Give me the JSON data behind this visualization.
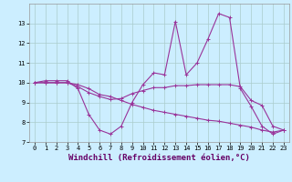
{
  "x": [
    0,
    1,
    2,
    3,
    4,
    5,
    6,
    7,
    8,
    9,
    10,
    11,
    12,
    13,
    14,
    15,
    16,
    17,
    18,
    19,
    20,
    21,
    22,
    23
  ],
  "line1": [
    10.0,
    10.1,
    10.1,
    10.1,
    9.7,
    8.4,
    7.6,
    7.4,
    7.8,
    9.0,
    9.9,
    10.5,
    10.4,
    13.1,
    10.4,
    11.0,
    12.2,
    13.5,
    13.3,
    9.7,
    8.8,
    7.8,
    7.4,
    7.6
  ],
  "line2": [
    10.0,
    10.0,
    10.0,
    10.0,
    9.8,
    9.5,
    9.3,
    9.15,
    9.2,
    9.45,
    9.6,
    9.75,
    9.75,
    9.85,
    9.85,
    9.9,
    9.9,
    9.9,
    9.9,
    9.8,
    9.1,
    8.85,
    7.8,
    7.6
  ],
  "line3": [
    10.0,
    10.0,
    10.0,
    10.0,
    9.9,
    9.7,
    9.4,
    9.3,
    9.1,
    8.9,
    8.75,
    8.6,
    8.5,
    8.4,
    8.3,
    8.2,
    8.1,
    8.05,
    7.95,
    7.85,
    7.75,
    7.6,
    7.5,
    7.6
  ],
  "color": "#993399",
  "bg_color": "#cceeff",
  "grid_color": "#aacccc",
  "xlabel": "Windchill (Refroidissement éolien,°C)",
  "ylim": [
    7,
    14
  ],
  "xlim": [
    -0.5,
    23.5
  ],
  "yticks": [
    7,
    8,
    9,
    10,
    11,
    12,
    13
  ],
  "xticks": [
    0,
    1,
    2,
    3,
    4,
    5,
    6,
    7,
    8,
    9,
    10,
    11,
    12,
    13,
    14,
    15,
    16,
    17,
    18,
    19,
    20,
    21,
    22,
    23
  ],
  "tick_fontsize": 5.0,
  "xlabel_fontsize": 6.5,
  "xlabel_color": "#660066"
}
